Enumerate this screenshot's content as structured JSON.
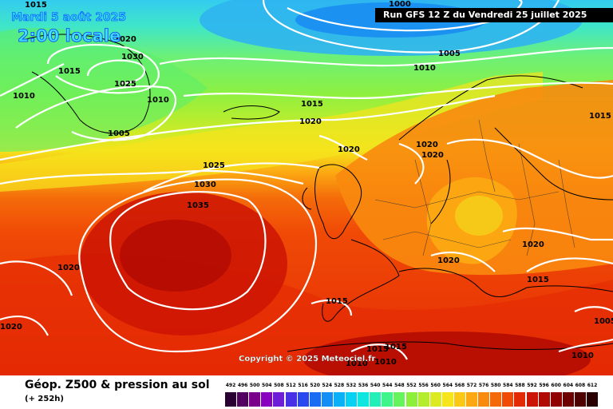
{
  "header": {
    "date": "Mardi 5 août 2025",
    "time": "2:00 locale",
    "run": "Run GFS 12 Z du Vendredi 25 juillet 2025"
  },
  "copyright": "Copyright © 2025 Meteociel.fr",
  "footer": {
    "title": "Géop. Z500 & pression au sol",
    "subtitle": "(+ 252h)"
  },
  "legend": {
    "labels": [
      "492",
      "496",
      "500",
      "504",
      "508",
      "512",
      "516",
      "520",
      "524",
      "528",
      "532",
      "536",
      "540",
      "544",
      "548",
      "552",
      "556",
      "560",
      "564",
      "568",
      "572",
      "576",
      "580",
      "584",
      "588",
      "592",
      "596",
      "600",
      "604",
      "608",
      "612"
    ],
    "colors": [
      "#2a0033",
      "#52005f",
      "#7a008c",
      "#8a00c0",
      "#6d1ed6",
      "#4730e6",
      "#2a48f0",
      "#1a6cf2",
      "#128ef4",
      "#0cb0f6",
      "#08d2f4",
      "#10e6e0",
      "#22f0b8",
      "#40f48c",
      "#66f45c",
      "#8cf03a",
      "#b4ec2e",
      "#dcea22",
      "#f6e41c",
      "#fcc816",
      "#fca812",
      "#f88a0e",
      "#f46a0a",
      "#f04a06",
      "#e42a04",
      "#cc1404",
      "#b00a02",
      "#900200",
      "#6e0000",
      "#4c0000",
      "#280000"
    ]
  },
  "isobars": [
    "1015",
    "1010",
    "1000",
    "1005",
    "1010",
    "1015",
    "1020",
    "1025",
    "1030",
    "1035",
    "1020",
    "1020",
    "1015",
    "1015",
    "1015",
    "1010",
    "1010",
    "1005",
    "1010",
    "1020",
    "1030",
    "1025",
    "1010",
    "1005",
    "1015",
    "1020",
    "1020",
    "1020",
    "1020",
    "1015",
    "1020",
    "1015",
    "1005",
    "1010",
    "1015"
  ]
}
